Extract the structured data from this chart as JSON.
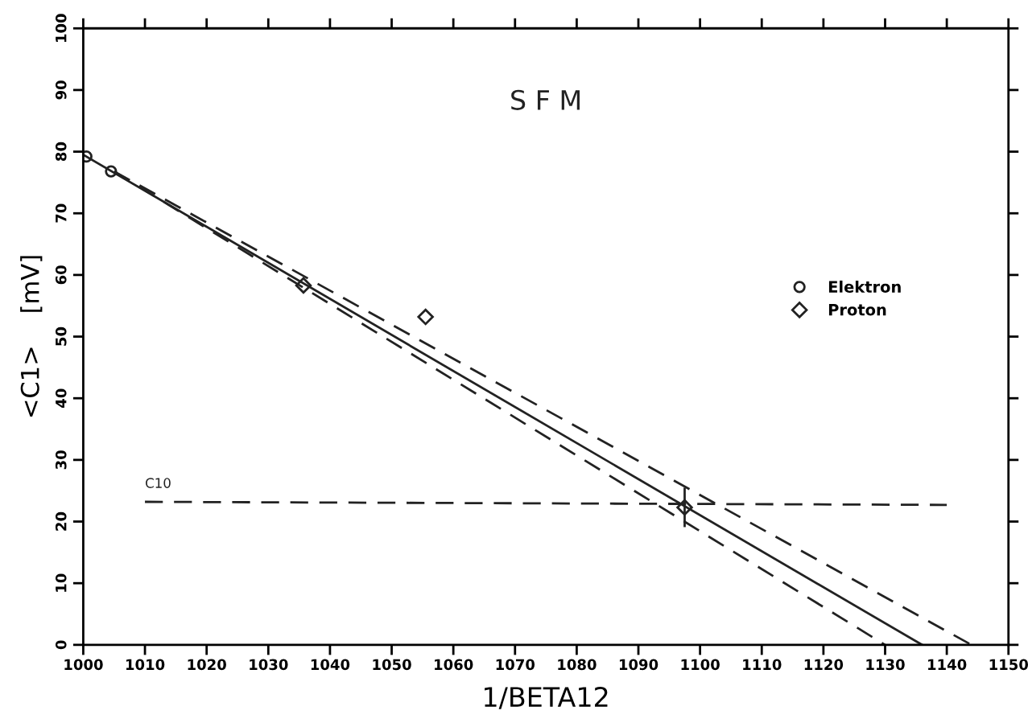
{
  "chart_data": {
    "type": "scatter",
    "title": "S F M",
    "xlabel": "1/BETA12",
    "ylabel": "<C1>    [mV]",
    "xlim": [
      1000,
      1150
    ],
    "xticks": [
      1000,
      1010,
      1020,
      1030,
      1040,
      1050,
      1060,
      1070,
      1080,
      1090,
      1100,
      1110,
      1120,
      1130,
      1140,
      1150
    ],
    "ylim": [
      0,
      100
    ],
    "yticks": [
      0,
      10,
      20,
      30,
      40,
      50,
      60,
      70,
      80,
      90,
      100
    ],
    "grid": false,
    "legend": "right",
    "annotations": [
      {
        "text": "C10",
        "x": 1010,
        "y": 23.2
      }
    ],
    "series": [
      {
        "name": "Elektron",
        "color": "#222222",
        "marker": "circle",
        "x": [
          1000.5,
          1004.5
        ],
        "values": [
          79.2,
          76.8
        ]
      },
      {
        "name": "Proton",
        "color": "#222222",
        "marker": "diamond",
        "x": [
          1035.7,
          1055.5,
          1097.5
        ],
        "values": [
          58.3,
          53.2,
          22.3
        ],
        "errors": [
          null,
          null,
          3.2
        ]
      },
      {
        "type": "line",
        "color": "#222222",
        "line_style": "solid",
        "marker": "none",
        "x": [
          1000,
          1136
        ],
        "values": [
          79.5,
          0
        ]
      },
      {
        "type": "line",
        "color": "#222222",
        "line_style": "dashed",
        "marker": "none",
        "x": [
          1005,
          1144
        ],
        "values": [
          76.8,
          0
        ]
      },
      {
        "type": "line",
        "color": "#222222",
        "line_style": "dashed",
        "marker": "none",
        "x": [
          1005,
          1130
        ],
        "values": [
          76.8,
          0
        ]
      },
      {
        "type": "line",
        "color": "#222222",
        "line_style": "dashed",
        "marker": "none",
        "x": [
          1010,
          1140
        ],
        "values": [
          23.2,
          22.7
        ]
      }
    ]
  }
}
